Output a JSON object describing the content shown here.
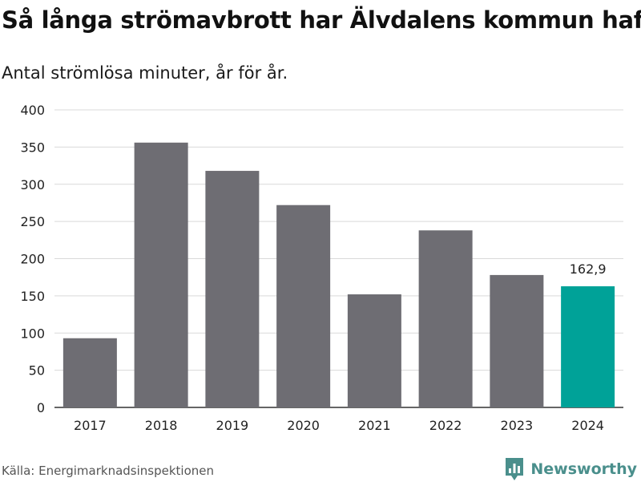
{
  "chart_data": {
    "type": "bar",
    "title": "Så långa strömavbrott har Älvdalens kommun haft",
    "subtitle": "Antal strömlösa minuter, år för år.",
    "categories": [
      "2017",
      "2018",
      "2019",
      "2020",
      "2021",
      "2022",
      "2023",
      "2024"
    ],
    "values": [
      93,
      356,
      318,
      272,
      152,
      238,
      178,
      162.9
    ],
    "ylim": [
      0,
      400
    ],
    "yticks": [
      "0",
      "50",
      "100",
      "150",
      "200",
      "250",
      "300",
      "350",
      "400"
    ],
    "xlabel": "",
    "ylabel": "",
    "grid": true,
    "highlight": {
      "index": 7,
      "label": "162,9"
    },
    "colors": {
      "bar": "#6e6d73",
      "highlight": "#00a298",
      "grid": "#d9d9d9",
      "axis": "#333333"
    }
  },
  "footer": {
    "source": "Källa: Energimarknadsinspektionen",
    "brand": "Newsworthy",
    "brand_color": "#4a8f8c"
  }
}
